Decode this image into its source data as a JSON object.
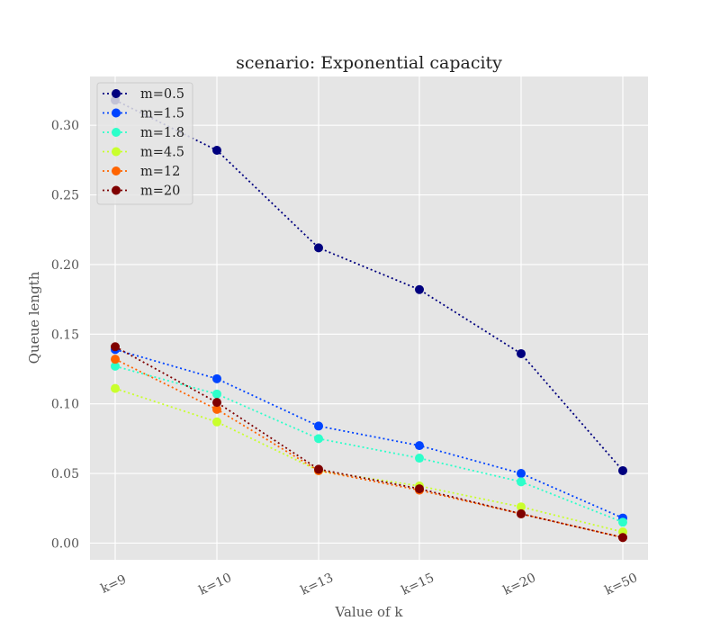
{
  "chart_data": {
    "type": "line",
    "title": "scenario: Exponential capacity",
    "xlabel": "Value of k",
    "ylabel": "Queue length",
    "categories": [
      "k=9",
      "k=10",
      "k=13",
      "k=15",
      "k=20",
      "k=50"
    ],
    "ylim": [
      -0.012,
      0.335
    ],
    "yticks": [
      0.0,
      0.05,
      0.1,
      0.15,
      0.2,
      0.25,
      0.3
    ],
    "ytick_labels": [
      "0.00",
      "0.05",
      "0.10",
      "0.15",
      "0.20",
      "0.25",
      "0.30"
    ],
    "grid": true,
    "legend_position": "top-left",
    "series": [
      {
        "name": "m=0.5",
        "color": "#00007f",
        "values": [
          0.318,
          0.282,
          0.212,
          0.182,
          0.136,
          0.052
        ]
      },
      {
        "name": "m=1.5",
        "color": "#0044ff",
        "values": [
          0.139,
          0.118,
          0.084,
          0.07,
          0.05,
          0.018
        ]
      },
      {
        "name": "m=1.8",
        "color": "#2cffca",
        "values": [
          0.127,
          0.107,
          0.075,
          0.061,
          0.044,
          0.015
        ]
      },
      {
        "name": "m=4.5",
        "color": "#c9ff2c",
        "values": [
          0.111,
          0.087,
          0.052,
          0.041,
          0.026,
          0.008
        ]
      },
      {
        "name": "m=12",
        "color": "#ff6400",
        "values": [
          0.132,
          0.096,
          0.052,
          0.038,
          0.021,
          0.004
        ]
      },
      {
        "name": "m=20",
        "color": "#7f0000",
        "values": [
          0.141,
          0.101,
          0.053,
          0.039,
          0.021,
          0.004
        ]
      }
    ]
  }
}
